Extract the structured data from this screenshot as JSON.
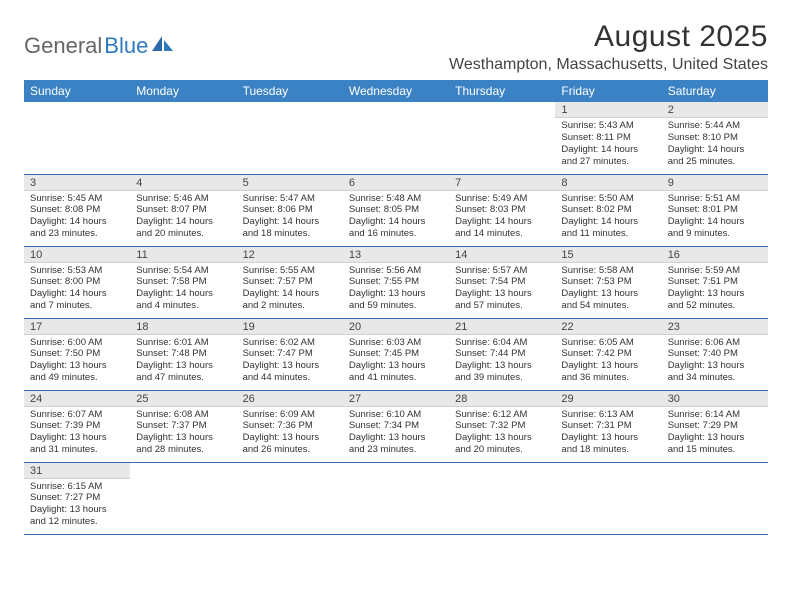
{
  "brand": {
    "general": "General",
    "blue": "Blue"
  },
  "title": "August 2025",
  "location": "Westhampton, Massachusetts, United States",
  "colors": {
    "header_bg": "#3b82c4",
    "header_text": "#ffffff",
    "daynum_bg": "#e8e8e8",
    "row_border": "#2f6aa8",
    "brand_blue": "#2f7abf",
    "brand_gray": "#666666"
  },
  "weekdays": [
    "Sunday",
    "Monday",
    "Tuesday",
    "Wednesday",
    "Thursday",
    "Friday",
    "Saturday"
  ],
  "first_weekday_index": 5,
  "days": [
    {
      "n": 1,
      "sunrise": "5:43 AM",
      "sunset": "8:11 PM",
      "daylight": "14 hours and 27 minutes."
    },
    {
      "n": 2,
      "sunrise": "5:44 AM",
      "sunset": "8:10 PM",
      "daylight": "14 hours and 25 minutes."
    },
    {
      "n": 3,
      "sunrise": "5:45 AM",
      "sunset": "8:08 PM",
      "daylight": "14 hours and 23 minutes."
    },
    {
      "n": 4,
      "sunrise": "5:46 AM",
      "sunset": "8:07 PM",
      "daylight": "14 hours and 20 minutes."
    },
    {
      "n": 5,
      "sunrise": "5:47 AM",
      "sunset": "8:06 PM",
      "daylight": "14 hours and 18 minutes."
    },
    {
      "n": 6,
      "sunrise": "5:48 AM",
      "sunset": "8:05 PM",
      "daylight": "14 hours and 16 minutes."
    },
    {
      "n": 7,
      "sunrise": "5:49 AM",
      "sunset": "8:03 PM",
      "daylight": "14 hours and 14 minutes."
    },
    {
      "n": 8,
      "sunrise": "5:50 AM",
      "sunset": "8:02 PM",
      "daylight": "14 hours and 11 minutes."
    },
    {
      "n": 9,
      "sunrise": "5:51 AM",
      "sunset": "8:01 PM",
      "daylight": "14 hours and 9 minutes."
    },
    {
      "n": 10,
      "sunrise": "5:53 AM",
      "sunset": "8:00 PM",
      "daylight": "14 hours and 7 minutes."
    },
    {
      "n": 11,
      "sunrise": "5:54 AM",
      "sunset": "7:58 PM",
      "daylight": "14 hours and 4 minutes."
    },
    {
      "n": 12,
      "sunrise": "5:55 AM",
      "sunset": "7:57 PM",
      "daylight": "14 hours and 2 minutes."
    },
    {
      "n": 13,
      "sunrise": "5:56 AM",
      "sunset": "7:55 PM",
      "daylight": "13 hours and 59 minutes."
    },
    {
      "n": 14,
      "sunrise": "5:57 AM",
      "sunset": "7:54 PM",
      "daylight": "13 hours and 57 minutes."
    },
    {
      "n": 15,
      "sunrise": "5:58 AM",
      "sunset": "7:53 PM",
      "daylight": "13 hours and 54 minutes."
    },
    {
      "n": 16,
      "sunrise": "5:59 AM",
      "sunset": "7:51 PM",
      "daylight": "13 hours and 52 minutes."
    },
    {
      "n": 17,
      "sunrise": "6:00 AM",
      "sunset": "7:50 PM",
      "daylight": "13 hours and 49 minutes."
    },
    {
      "n": 18,
      "sunrise": "6:01 AM",
      "sunset": "7:48 PM",
      "daylight": "13 hours and 47 minutes."
    },
    {
      "n": 19,
      "sunrise": "6:02 AM",
      "sunset": "7:47 PM",
      "daylight": "13 hours and 44 minutes."
    },
    {
      "n": 20,
      "sunrise": "6:03 AM",
      "sunset": "7:45 PM",
      "daylight": "13 hours and 41 minutes."
    },
    {
      "n": 21,
      "sunrise": "6:04 AM",
      "sunset": "7:44 PM",
      "daylight": "13 hours and 39 minutes."
    },
    {
      "n": 22,
      "sunrise": "6:05 AM",
      "sunset": "7:42 PM",
      "daylight": "13 hours and 36 minutes."
    },
    {
      "n": 23,
      "sunrise": "6:06 AM",
      "sunset": "7:40 PM",
      "daylight": "13 hours and 34 minutes."
    },
    {
      "n": 24,
      "sunrise": "6:07 AM",
      "sunset": "7:39 PM",
      "daylight": "13 hours and 31 minutes."
    },
    {
      "n": 25,
      "sunrise": "6:08 AM",
      "sunset": "7:37 PM",
      "daylight": "13 hours and 28 minutes."
    },
    {
      "n": 26,
      "sunrise": "6:09 AM",
      "sunset": "7:36 PM",
      "daylight": "13 hours and 26 minutes."
    },
    {
      "n": 27,
      "sunrise": "6:10 AM",
      "sunset": "7:34 PM",
      "daylight": "13 hours and 23 minutes."
    },
    {
      "n": 28,
      "sunrise": "6:12 AM",
      "sunset": "7:32 PM",
      "daylight": "13 hours and 20 minutes."
    },
    {
      "n": 29,
      "sunrise": "6:13 AM",
      "sunset": "7:31 PM",
      "daylight": "13 hours and 18 minutes."
    },
    {
      "n": 30,
      "sunrise": "6:14 AM",
      "sunset": "7:29 PM",
      "daylight": "13 hours and 15 minutes."
    },
    {
      "n": 31,
      "sunrise": "6:15 AM",
      "sunset": "7:27 PM",
      "daylight": "13 hours and 12 minutes."
    }
  ],
  "labels": {
    "sunrise": "Sunrise:",
    "sunset": "Sunset:",
    "daylight": "Daylight:"
  }
}
